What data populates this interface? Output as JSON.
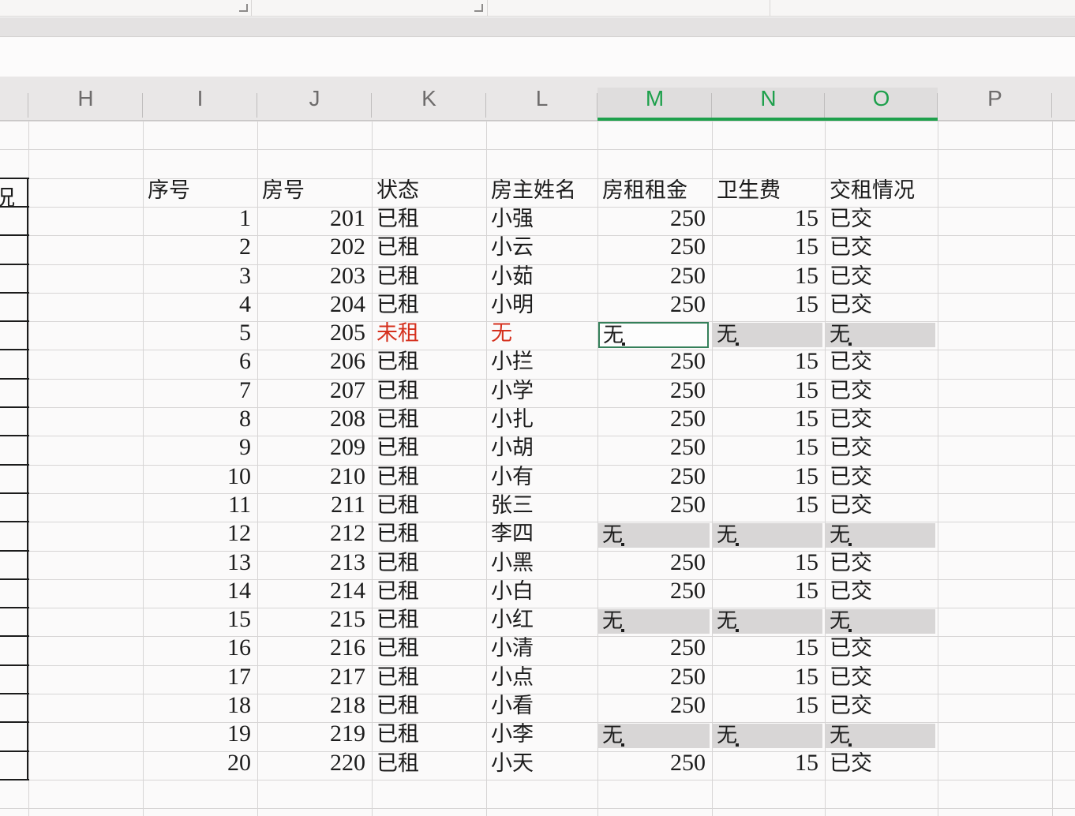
{
  "grid": {
    "column_letters": [
      "H",
      "I",
      "J",
      "K",
      "L",
      "M",
      "N",
      "O",
      "P"
    ],
    "selected_columns": [
      "M",
      "N",
      "O"
    ]
  },
  "left_table_fragment": {
    "header_fragment": "况"
  },
  "rent_table": {
    "headers": {
      "no": "序号",
      "room": "房号",
      "status": "状态",
      "owner": "房主姓名",
      "rent": "房租租金",
      "fee": "卫生费",
      "paid": "交租情况"
    },
    "rows": [
      {
        "no": "1",
        "room": "201",
        "status": "已租",
        "owner": "小强",
        "rent": "250",
        "fee": "15",
        "paid": "已交"
      },
      {
        "no": "2",
        "room": "202",
        "status": "已租",
        "owner": "小云",
        "rent": "250",
        "fee": "15",
        "paid": "已交"
      },
      {
        "no": "3",
        "room": "203",
        "status": "已租",
        "owner": "小茹",
        "rent": "250",
        "fee": "15",
        "paid": "已交"
      },
      {
        "no": "4",
        "room": "204",
        "status": "已租",
        "owner": "小明",
        "rent": "250",
        "fee": "15",
        "paid": "已交"
      },
      {
        "no": "5",
        "room": "205",
        "status": "未租",
        "owner": "无",
        "rent": "无",
        "fee": "无",
        "paid": "无",
        "status_red": true,
        "owner_red": true,
        "none_fees": true,
        "active_cell": "rent"
      },
      {
        "no": "6",
        "room": "206",
        "status": "已租",
        "owner": "小拦",
        "rent": "250",
        "fee": "15",
        "paid": "已交"
      },
      {
        "no": "7",
        "room": "207",
        "status": "已租",
        "owner": "小学",
        "rent": "250",
        "fee": "15",
        "paid": "已交"
      },
      {
        "no": "8",
        "room": "208",
        "status": "已租",
        "owner": "小扎",
        "rent": "250",
        "fee": "15",
        "paid": "已交"
      },
      {
        "no": "9",
        "room": "209",
        "status": "已租",
        "owner": "小胡",
        "rent": "250",
        "fee": "15",
        "paid": "已交"
      },
      {
        "no": "10",
        "room": "210",
        "status": "已租",
        "owner": "小有",
        "rent": "250",
        "fee": "15",
        "paid": "已交"
      },
      {
        "no": "11",
        "room": "211",
        "status": "已租",
        "owner": "张三",
        "rent": "250",
        "fee": "15",
        "paid": "已交"
      },
      {
        "no": "12",
        "room": "212",
        "status": "已租",
        "owner": "李四",
        "rent": "无",
        "fee": "无",
        "paid": "无",
        "none_fees": true
      },
      {
        "no": "13",
        "room": "213",
        "status": "已租",
        "owner": "小黑",
        "rent": "250",
        "fee": "15",
        "paid": "已交"
      },
      {
        "no": "14",
        "room": "214",
        "status": "已租",
        "owner": "小白",
        "rent": "250",
        "fee": "15",
        "paid": "已交"
      },
      {
        "no": "15",
        "room": "215",
        "status": "已租",
        "owner": "小红",
        "rent": "无",
        "fee": "无",
        "paid": "无",
        "none_fees": true
      },
      {
        "no": "16",
        "room": "216",
        "status": "已租",
        "owner": "小清",
        "rent": "250",
        "fee": "15",
        "paid": "已交"
      },
      {
        "no": "17",
        "room": "217",
        "status": "已租",
        "owner": "小点",
        "rent": "250",
        "fee": "15",
        "paid": "已交"
      },
      {
        "no": "18",
        "room": "218",
        "status": "已租",
        "owner": "小看",
        "rent": "250",
        "fee": "15",
        "paid": "已交"
      },
      {
        "no": "19",
        "room": "219",
        "status": "已租",
        "owner": "小李",
        "rent": "无",
        "fee": "无",
        "paid": "无",
        "none_fees": true
      },
      {
        "no": "20",
        "room": "220",
        "status": "已租",
        "owner": "小天",
        "rent": "250",
        "fee": "15",
        "paid": "已交"
      }
    ]
  },
  "colors": {
    "selection_green": "#1ea04c",
    "alert_red": "#d5301d",
    "vacant_fill_gray": "#d8d6d6",
    "active_cell_border_green": "#35805a"
  }
}
